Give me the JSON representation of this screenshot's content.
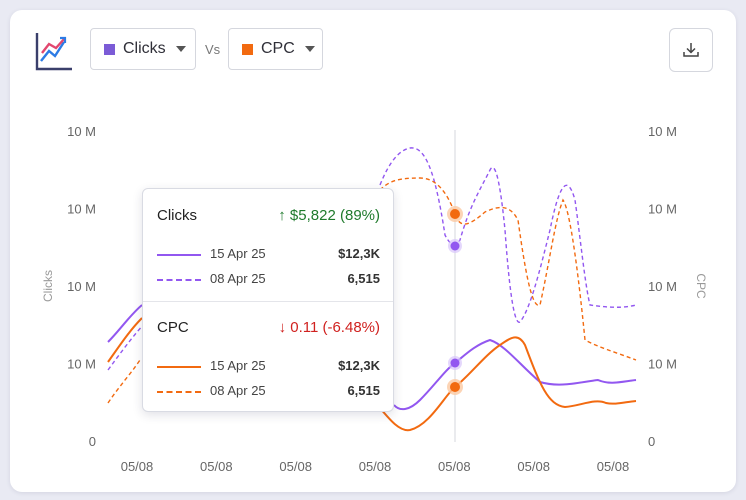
{
  "header": {
    "series_a": {
      "label": "Clicks",
      "color": "#7b5bd6"
    },
    "vs_label": "Vs",
    "series_b": {
      "label": "CPC",
      "color": "#f26a10"
    },
    "icons": {
      "logo": "line-chart-logo-icon",
      "download": "download-icon"
    }
  },
  "chart_data": {
    "type": "line",
    "y_left_ticks": [
      "10 M",
      "10 M",
      "10 M",
      "10 M",
      "0"
    ],
    "y_right_ticks": [
      "10 M",
      "10 M",
      "10 M",
      "10 M",
      "0"
    ],
    "x_ticks": [
      "05/08",
      "05/08",
      "05/08",
      "05/08",
      "05/08",
      "05/08",
      "05/08"
    ],
    "ylabel_left": "Clicks",
    "ylabel_right": "CPC",
    "grid": "vertical hover line only",
    "series": [
      {
        "name": "Clicks (15 Apr 25)",
        "style": "solid",
        "color": "#9257f0"
      },
      {
        "name": "Clicks (08 Apr 25)",
        "style": "dashed",
        "color": "#9257f0"
      },
      {
        "name": "CPC (15 Apr 25)",
        "style": "solid",
        "color": "#f26a10"
      },
      {
        "name": "CPC (08 Apr 25)",
        "style": "dashed",
        "color": "#f26a10"
      }
    ]
  },
  "tooltip": {
    "clicks": {
      "title": "Clicks",
      "delta": "↑ $5,822 (89%)",
      "delta_color": "#1f7a2c",
      "rows": [
        {
          "date": "15 Apr 25",
          "value": "$12,3K",
          "style": "solid"
        },
        {
          "date": "08 Apr 25",
          "value": "6,515",
          "style": "dashed"
        }
      ]
    },
    "cpc": {
      "title": "CPC",
      "delta": "↓ 0.11 (-6.48%)",
      "delta_color": "#d0211f",
      "rows": [
        {
          "date": "15 Apr 25",
          "value": "$12,3K",
          "style": "solid"
        },
        {
          "date": "08 Apr 25",
          "value": "6,515",
          "style": "dashed"
        }
      ]
    }
  }
}
